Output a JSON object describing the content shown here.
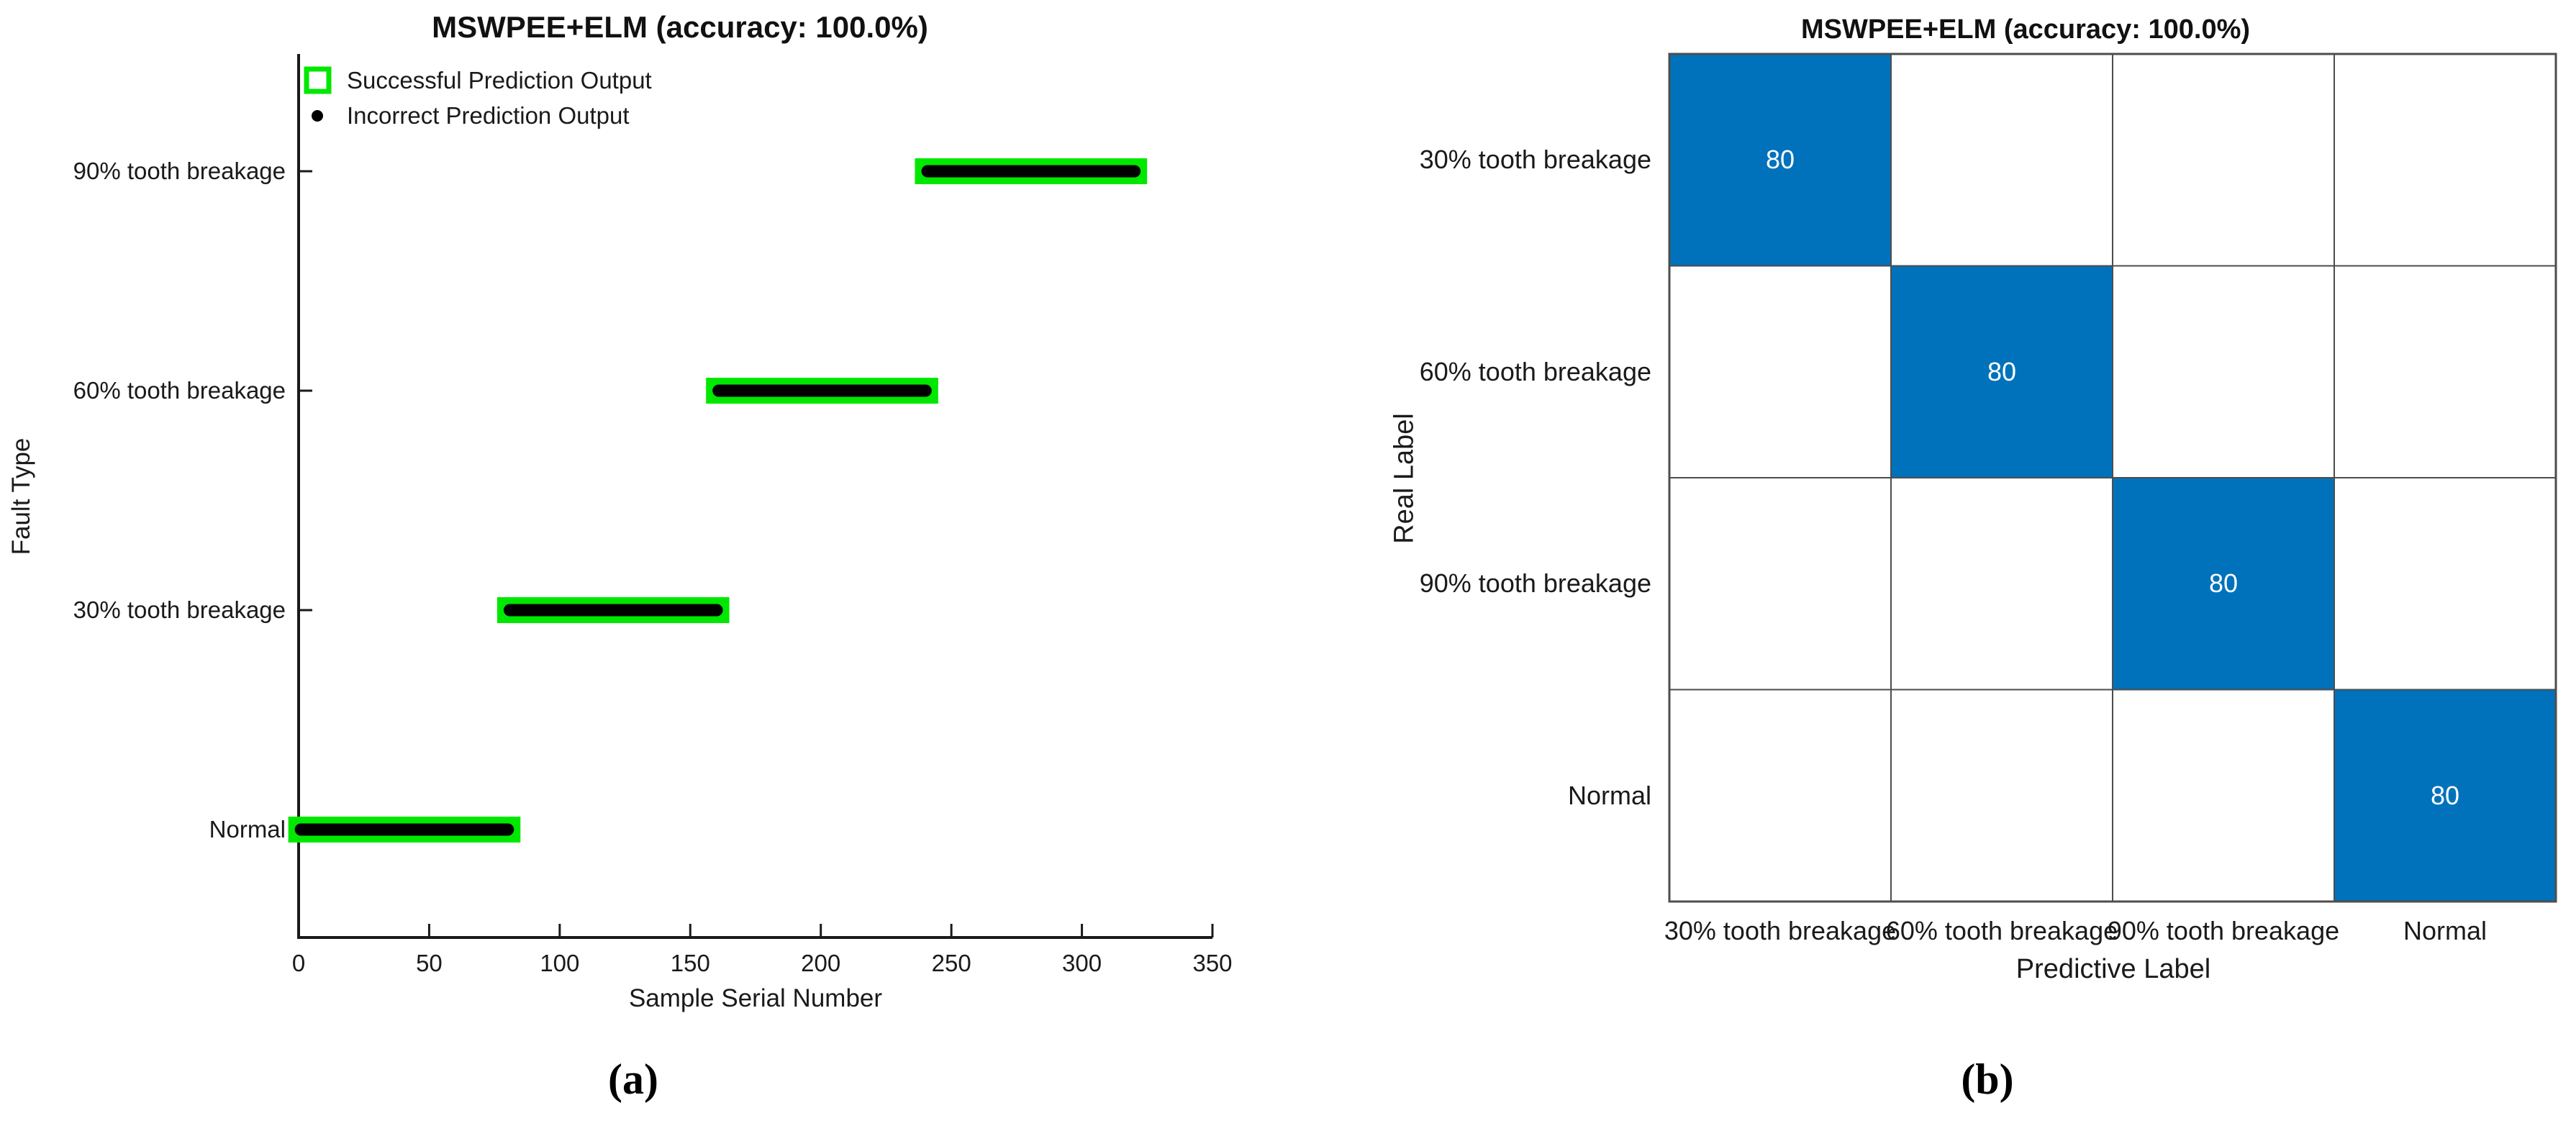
{
  "figure": {
    "panel_a_label": "(a)",
    "panel_b_label": "(b)"
  },
  "chart_data": [
    {
      "type": "scatter",
      "title": "MSWPEE+ELM (accuracy: 100.0%)",
      "xlabel": "Sample Serial Number",
      "ylabel": "Fault Type",
      "xlim": [
        0,
        350
      ],
      "xticks": [
        0,
        50,
        100,
        150,
        200,
        250,
        300,
        350
      ],
      "categories": [
        "Normal",
        "30% tooth breakage",
        "60% tooth breakage",
        "90% tooth breakage"
      ],
      "legend": [
        {
          "label": "Successful Prediction Output",
          "marker": "open-square",
          "color": "#00e800"
        },
        {
          "label": "Incorrect Prediction Output",
          "marker": "dot",
          "color": "#000000"
        }
      ],
      "colors": {
        "success": "#00e800",
        "predicted": "#000000",
        "axis": "#1a1a1a"
      },
      "segments": [
        {
          "category": "Normal",
          "start": 1,
          "end": 80
        },
        {
          "category": "30% tooth breakage",
          "start": 81,
          "end": 160
        },
        {
          "category": "60% tooth breakage",
          "start": 161,
          "end": 240
        },
        {
          "category": "90% tooth breakage",
          "start": 241,
          "end": 320
        }
      ],
      "legend_position": "top-left-inside",
      "grid": false
    },
    {
      "type": "heatmap",
      "title": "MSWPEE+ELM (accuracy: 100.0%)",
      "xlabel": "Predictive Label",
      "ylabel": "Real Label",
      "row_labels": [
        "30% tooth breakage",
        "60% tooth breakage",
        "90% tooth breakage",
        "Normal"
      ],
      "col_labels": [
        "30% tooth breakage",
        "60% tooth breakage",
        "90% tooth breakage",
        "Normal"
      ],
      "matrix": [
        [
          80,
          null,
          null,
          null
        ],
        [
          null,
          80,
          null,
          null
        ],
        [
          null,
          null,
          80,
          null
        ],
        [
          null,
          null,
          null,
          80
        ]
      ],
      "cell_fill_color": "#0072bc",
      "cell_text_color": "#ffffff",
      "empty_fill_color": "#ffffff",
      "grid_color": "#4d4d4d"
    }
  ]
}
